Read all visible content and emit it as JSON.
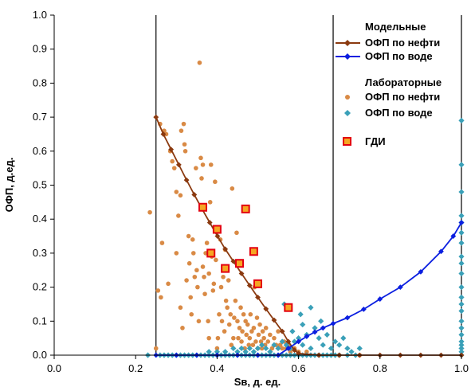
{
  "chart_data": {
    "type": "scatter",
    "title": "",
    "xlabel": "Sв, д. ед.",
    "ylabel": "ОФП, д.ед.",
    "xlim": [
      0,
      1
    ],
    "ylim": [
      0,
      1
    ],
    "xticks": [
      0.0,
      0.2,
      0.4,
      0.6,
      0.8,
      1.0
    ],
    "yticks": [
      0.0,
      0.1,
      0.2,
      0.3,
      0.4,
      0.5,
      0.6,
      0.7,
      0.8,
      0.9,
      1.0
    ],
    "x_tick_labels": [
      "0.0",
      "0.2",
      "0.4",
      "0.6",
      "0.8",
      "1.0"
    ],
    "y_tick_labels": [
      "0.0",
      "0.1",
      "0.2",
      "0.3",
      "0.4",
      "0.5",
      "0.6",
      "0.7",
      "0.8",
      "0.9",
      "1.0"
    ],
    "vertical_lines": [
      0.25,
      0.685,
      1.0
    ],
    "legend_placement": "top-right",
    "legend": {
      "group_model": "Модельные",
      "group_lab": "Лабораторные",
      "model_oil": "ОФП по нефти",
      "model_water": "ОФП по воде",
      "lab_oil": "ОФП по нефти",
      "lab_water": "ОФП по воде",
      "gdi": "ГДИ"
    },
    "colors": {
      "model_oil": "#8b3a10",
      "model_water": "#0b1fe0",
      "lab_oil": "#d98a45",
      "lab_water": "#3aa0b8",
      "gdi_fill": "#f5a623",
      "gdi_edge": "#e3000f"
    },
    "series": [
      {
        "key": "model_oil",
        "name": "ОФП по нефти",
        "group": "Модельные",
        "kind": "line-diamond",
        "points": [
          [
            0.25,
            0.7
          ],
          [
            0.268,
            0.65
          ],
          [
            0.287,
            0.605
          ],
          [
            0.306,
            0.56
          ],
          [
            0.325,
            0.515
          ],
          [
            0.344,
            0.472
          ],
          [
            0.363,
            0.43
          ],
          [
            0.382,
            0.39
          ],
          [
            0.401,
            0.35
          ],
          [
            0.42,
            0.312
          ],
          [
            0.44,
            0.276
          ],
          [
            0.46,
            0.24
          ],
          [
            0.48,
            0.205
          ],
          [
            0.5,
            0.17
          ],
          [
            0.52,
            0.136
          ],
          [
            0.54,
            0.103
          ],
          [
            0.56,
            0.07
          ],
          [
            0.575,
            0.04
          ],
          [
            0.59,
            0.015
          ],
          [
            0.6,
            0.005
          ],
          [
            0.65,
            0.0
          ],
          [
            0.7,
            0.0
          ],
          [
            0.75,
            0.0
          ],
          [
            0.8,
            0.0
          ],
          [
            0.85,
            0.0
          ],
          [
            0.9,
            0.0
          ],
          [
            0.95,
            0.0
          ],
          [
            1.0,
            0.0
          ]
        ]
      },
      {
        "key": "model_water",
        "name": "ОФП по воде",
        "group": "Модельные",
        "kind": "line-diamond",
        "points": [
          [
            0.25,
            0.0
          ],
          [
            0.3,
            0.0
          ],
          [
            0.35,
            0.0
          ],
          [
            0.4,
            0.0
          ],
          [
            0.45,
            0.0
          ],
          [
            0.5,
            0.0
          ],
          [
            0.55,
            0.0
          ],
          [
            0.575,
            0.02
          ],
          [
            0.6,
            0.04
          ],
          [
            0.62,
            0.055
          ],
          [
            0.64,
            0.068
          ],
          [
            0.66,
            0.08
          ],
          [
            0.685,
            0.093
          ],
          [
            0.72,
            0.11
          ],
          [
            0.76,
            0.135
          ],
          [
            0.8,
            0.165
          ],
          [
            0.85,
            0.2
          ],
          [
            0.9,
            0.245
          ],
          [
            0.95,
            0.305
          ],
          [
            0.98,
            0.35
          ],
          [
            1.0,
            0.39
          ]
        ]
      },
      {
        "key": "lab_oil",
        "name": "ОФП по нефти",
        "group": "Лабораторные",
        "kind": "dot",
        "points": [
          [
            0.235,
            0.42
          ],
          [
            0.25,
            0.02
          ],
          [
            0.255,
            0.19
          ],
          [
            0.26,
            0.68
          ],
          [
            0.262,
            0.17
          ],
          [
            0.265,
            0.33
          ],
          [
            0.27,
            0.66
          ],
          [
            0.275,
            0.65
          ],
          [
            0.28,
            0.21
          ],
          [
            0.285,
            0.6
          ],
          [
            0.29,
            0.57
          ],
          [
            0.295,
            0.55
          ],
          [
            0.3,
            0.48
          ],
          [
            0.3,
            0.3
          ],
          [
            0.305,
            0.41
          ],
          [
            0.31,
            0.47
          ],
          [
            0.31,
            0.14
          ],
          [
            0.312,
            0.66
          ],
          [
            0.315,
            0.08
          ],
          [
            0.318,
            0.68
          ],
          [
            0.32,
            0.62
          ],
          [
            0.322,
            0.6
          ],
          [
            0.325,
            0.22
          ],
          [
            0.33,
            0.35
          ],
          [
            0.332,
            0.27
          ],
          [
            0.335,
            0.17
          ],
          [
            0.337,
            0.12
          ],
          [
            0.34,
            0.34
          ],
          [
            0.342,
            0.3
          ],
          [
            0.345,
            0.23
          ],
          [
            0.348,
            0.55
          ],
          [
            0.35,
            0.25
          ],
          [
            0.352,
            0.2
          ],
          [
            0.355,
            0.1
          ],
          [
            0.357,
            0.86
          ],
          [
            0.36,
            0.58
          ],
          [
            0.362,
            0.52
          ],
          [
            0.365,
            0.56
          ],
          [
            0.365,
            0.26
          ],
          [
            0.368,
            0.23
          ],
          [
            0.37,
            0.18
          ],
          [
            0.372,
            0.3
          ],
          [
            0.375,
            0.33
          ],
          [
            0.378,
            0.1
          ],
          [
            0.38,
            0.05
          ],
          [
            0.38,
            0.24
          ],
          [
            0.383,
            0.45
          ],
          [
            0.385,
            0.56
          ],
          [
            0.387,
            0.29
          ],
          [
            0.39,
            0.19
          ],
          [
            0.392,
            0.21
          ],
          [
            0.395,
            0.51
          ],
          [
            0.397,
            0.28
          ],
          [
            0.4,
            0.02
          ],
          [
            0.402,
            0.05
          ],
          [
            0.405,
            0.12
          ],
          [
            0.408,
            0.34
          ],
          [
            0.41,
            0.2
          ],
          [
            0.412,
            0.1
          ],
          [
            0.415,
            0.23
          ],
          [
            0.418,
            0.07
          ],
          [
            0.42,
            0.31
          ],
          [
            0.422,
            0.16
          ],
          [
            0.425,
            0.14
          ],
          [
            0.428,
            0.22
          ],
          [
            0.43,
            0.09
          ],
          [
            0.433,
            0.12
          ],
          [
            0.435,
            0.03
          ],
          [
            0.437,
            0.49
          ],
          [
            0.44,
            0.05
          ],
          [
            0.442,
            0.11
          ],
          [
            0.445,
            0.16
          ],
          [
            0.448,
            0.36
          ],
          [
            0.45,
            0.1
          ],
          [
            0.452,
            0.05
          ],
          [
            0.455,
            0.08
          ],
          [
            0.458,
            0.14
          ],
          [
            0.46,
            0.04
          ],
          [
            0.462,
            0.07
          ],
          [
            0.465,
            0.12
          ],
          [
            0.468,
            0.02
          ],
          [
            0.47,
            0.1
          ],
          [
            0.472,
            0.06
          ],
          [
            0.475,
            0.09
          ],
          [
            0.478,
            0.03
          ],
          [
            0.48,
            0.05
          ],
          [
            0.482,
            0.12
          ],
          [
            0.485,
            0.07
          ],
          [
            0.488,
            0.03
          ],
          [
            0.49,
            0.08
          ],
          [
            0.492,
            0.2
          ],
          [
            0.495,
            0.04
          ],
          [
            0.498,
            0.11
          ],
          [
            0.5,
            0.02
          ],
          [
            0.502,
            0.06
          ],
          [
            0.505,
            0.09
          ],
          [
            0.508,
            0.04
          ],
          [
            0.51,
            0.02
          ],
          [
            0.512,
            0.07
          ],
          [
            0.515,
            0.05
          ],
          [
            0.518,
            0.03
          ],
          [
            0.52,
            0.08
          ],
          [
            0.525,
            0.04
          ],
          [
            0.53,
            0.06
          ],
          [
            0.535,
            0.02
          ],
          [
            0.54,
            0.05
          ],
          [
            0.545,
            0.03
          ],
          [
            0.55,
            0.07
          ],
          [
            0.555,
            0.03
          ],
          [
            0.56,
            0.02
          ],
          [
            0.565,
            0.04
          ],
          [
            0.57,
            0.02
          ],
          [
            0.575,
            0.03
          ],
          [
            0.58,
            0.01
          ],
          [
            0.59,
            0.02
          ],
          [
            0.6,
            0.01
          ],
          [
            0.62,
            0.01
          ],
          [
            0.65,
            0.0
          ],
          [
            0.7,
            0.0
          ],
          [
            0.75,
            0.0
          ]
        ]
      },
      {
        "key": "lab_water",
        "name": "ОФП по воде",
        "group": "Лабораторные",
        "kind": "diamond",
        "points": [
          [
            0.23,
            0.0
          ],
          [
            0.26,
            0.0
          ],
          [
            0.27,
            0.0
          ],
          [
            0.28,
            0.0
          ],
          [
            0.29,
            0.0
          ],
          [
            0.3,
            0.0
          ],
          [
            0.31,
            0.0
          ],
          [
            0.32,
            0.0
          ],
          [
            0.33,
            0.0
          ],
          [
            0.34,
            0.0
          ],
          [
            0.35,
            0.0
          ],
          [
            0.36,
            0.0
          ],
          [
            0.37,
            0.0
          ],
          [
            0.38,
            0.0
          ],
          [
            0.39,
            0.0
          ],
          [
            0.4,
            0.0
          ],
          [
            0.41,
            0.0
          ],
          [
            0.42,
            0.0
          ],
          [
            0.43,
            0.0
          ],
          [
            0.44,
            0.0
          ],
          [
            0.45,
            0.0
          ],
          [
            0.46,
            0.0
          ],
          [
            0.47,
            0.0
          ],
          [
            0.48,
            0.0
          ],
          [
            0.49,
            0.0
          ],
          [
            0.5,
            0.0
          ],
          [
            0.51,
            0.0
          ],
          [
            0.52,
            0.0
          ],
          [
            0.53,
            0.0
          ],
          [
            0.54,
            0.0
          ],
          [
            0.55,
            0.0
          ],
          [
            0.56,
            0.0
          ],
          [
            0.57,
            0.0
          ],
          [
            0.58,
            0.0
          ],
          [
            0.59,
            0.0
          ],
          [
            0.6,
            0.0
          ],
          [
            0.61,
            0.0
          ],
          [
            0.62,
            0.0
          ],
          [
            0.63,
            0.0
          ],
          [
            0.64,
            0.0
          ],
          [
            0.65,
            0.0
          ],
          [
            0.66,
            0.0
          ],
          [
            0.67,
            0.0
          ],
          [
            0.68,
            0.0
          ],
          [
            0.69,
            0.0
          ],
          [
            0.7,
            0.0
          ],
          [
            0.72,
            0.0
          ],
          [
            0.74,
            0.0
          ],
          [
            0.38,
            0.01
          ],
          [
            0.4,
            0.01
          ],
          [
            0.42,
            0.01
          ],
          [
            0.44,
            0.02
          ],
          [
            0.45,
            0.01
          ],
          [
            0.46,
            0.02
          ],
          [
            0.47,
            0.01
          ],
          [
            0.48,
            0.02
          ],
          [
            0.49,
            0.01
          ],
          [
            0.5,
            0.02
          ],
          [
            0.51,
            0.03
          ],
          [
            0.52,
            0.02
          ],
          [
            0.53,
            0.01
          ],
          [
            0.54,
            0.03
          ],
          [
            0.55,
            0.02
          ],
          [
            0.56,
            0.04
          ],
          [
            0.57,
            0.03
          ],
          [
            0.58,
            0.02
          ],
          [
            0.59,
            0.04
          ],
          [
            0.6,
            0.05
          ],
          [
            0.61,
            0.03
          ],
          [
            0.62,
            0.06
          ],
          [
            0.63,
            0.02
          ],
          [
            0.64,
            0.08
          ],
          [
            0.65,
            0.05
          ],
          [
            0.66,
            0.03
          ],
          [
            0.67,
            0.06
          ],
          [
            0.68,
            0.02
          ],
          [
            0.69,
            0.04
          ],
          [
            0.7,
            0.03
          ],
          [
            0.71,
            0.05
          ],
          [
            0.72,
            0.02
          ],
          [
            0.73,
            0.01
          ],
          [
            0.75,
            0.02
          ],
          [
            0.565,
            0.15
          ],
          [
            0.605,
            0.12
          ],
          [
            0.63,
            0.14
          ],
          [
            0.585,
            0.07
          ],
          [
            0.655,
            0.1
          ],
          [
            0.61,
            0.09
          ],
          [
            1.0,
            0.0
          ],
          [
            1.0,
            0.01
          ],
          [
            1.0,
            0.02
          ],
          [
            1.0,
            0.03
          ],
          [
            1.0,
            0.04
          ],
          [
            1.0,
            0.06
          ],
          [
            1.0,
            0.08
          ],
          [
            1.0,
            0.1
          ],
          [
            1.0,
            0.13
          ],
          [
            1.0,
            0.15
          ],
          [
            1.0,
            0.17
          ],
          [
            1.0,
            0.2
          ],
          [
            1.0,
            0.24
          ],
          [
            1.0,
            0.27
          ],
          [
            1.0,
            0.29
          ],
          [
            1.0,
            0.33
          ],
          [
            1.0,
            0.36
          ],
          [
            1.0,
            0.39
          ],
          [
            1.0,
            0.41
          ],
          [
            1.0,
            0.48
          ],
          [
            1.0,
            0.56
          ],
          [
            1.0,
            0.69
          ]
        ]
      },
      {
        "key": "gdi",
        "name": "ГДИ",
        "group": "",
        "kind": "square",
        "points": [
          [
            0.365,
            0.435
          ],
          [
            0.385,
            0.3
          ],
          [
            0.4,
            0.37
          ],
          [
            0.42,
            0.255
          ],
          [
            0.455,
            0.27
          ],
          [
            0.47,
            0.43
          ],
          [
            0.49,
            0.305
          ],
          [
            0.5,
            0.21
          ],
          [
            0.575,
            0.14
          ]
        ]
      }
    ]
  }
}
